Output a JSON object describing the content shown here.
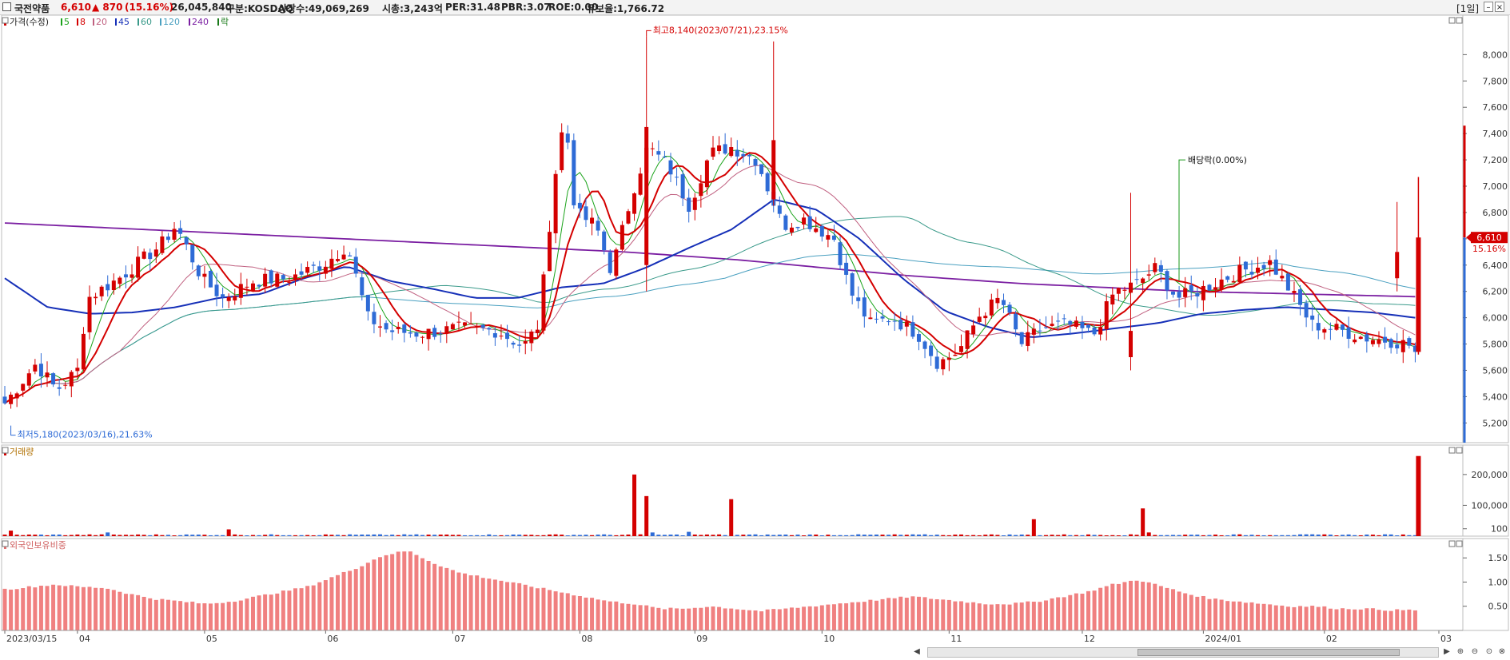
{
  "header": {
    "stock_name": "국전약품",
    "price": "6,610",
    "change": "▲ 870",
    "change_pct": "(15.16%)",
    "volume": "26,045,840",
    "market": "구분:KOSDAQ",
    "shares": "상장수:49,069,269",
    "market_cap": "시총:3,243억",
    "per": "PER:31.48",
    "pbr": "PBR:3.07",
    "roe": "ROE:0.00",
    "float_ratio": "유보율:1,766.72",
    "period_button": "[1일]",
    "colors": {
      "up": "#d40000",
      "down": "#2e6bd6"
    }
  },
  "chart_data": [
    {
      "type": "candlestick",
      "title": "가격(수정)",
      "legend": [
        {
          "label": "5",
          "color": "#1aa31a"
        },
        {
          "label": "8",
          "color": "#d40000"
        },
        {
          "label": "20",
          "color": "#c06080"
        },
        {
          "label": "45",
          "color": "#1630b8"
        },
        {
          "label": "60",
          "color": "#3a9a8a"
        },
        {
          "label": "120",
          "color": "#4aa0c0"
        },
        {
          "label": "240",
          "color": "#7b1fa2"
        },
        {
          "label": "락",
          "color": "#1a7a1a"
        }
      ],
      "y_ticks": [
        "8,000",
        "7,800",
        "7,600",
        "7,400",
        "7,200",
        "7,000",
        "6,800",
        "6,600",
        "6,400",
        "6,200",
        "6,000",
        "5,800",
        "5,600",
        "5,400",
        "5,200"
      ],
      "ylim": [
        5050,
        8300
      ],
      "x_ticks": [
        "2023/03/15",
        "04",
        "05",
        "06",
        "07",
        "08",
        "09",
        "10",
        "11",
        "12",
        "2024/01",
        "02",
        "03"
      ],
      "annotations": {
        "high": "최고8,140(2023/07/21),23.15%",
        "low": "최저5,180(2023/03/16),21.63%",
        "dividend": "배당락(0.00%)",
        "last_price": "6,610",
        "last_pct": "15.16%"
      },
      "series_ma240": [
        6720,
        6700,
        6680,
        6660,
        6640,
        6620,
        6600,
        6580,
        6560,
        6540,
        6520,
        6500,
        6470,
        6440,
        6400,
        6360,
        6320,
        6290,
        6260,
        6240,
        6220,
        6200,
        6190,
        6180,
        6170,
        6160
      ],
      "series_ma45": [
        6300,
        6080,
        6030,
        6040,
        6080,
        6150,
        6180,
        6300,
        6390,
        6280,
        6220,
        6150,
        6150,
        6230,
        6260,
        6380,
        6530,
        6670,
        6900,
        6820,
        6600,
        6300,
        6050,
        5930,
        5850,
        5880,
        5920,
        5960,
        6030,
        6060,
        6080,
        6060,
        6040,
        6000
      ],
      "approx_ohlc_shape": "candles with red (up) and blue (down) bodies from 2023/03 to 2024/02; range 5180-8140"
    },
    {
      "type": "bar",
      "title": "거래량",
      "y_ticks": [
        "200,000",
        "100,000",
        "100"
      ],
      "notable_values": {
        "2023-07-20": 200000,
        "2023-07-21": 130000,
        "2023-08-11": 120000,
        "2023-10-20": 55000,
        "2023-12-05": 90000,
        "2024-02-27": 260000
      }
    },
    {
      "type": "bar",
      "title": "외국인보유비중",
      "y_ticks": [
        "1.50",
        "1.00",
        "0.50"
      ],
      "ylim": [
        0,
        1.9
      ],
      "values_summary": [
        0.85,
        0.9,
        0.95,
        0.9,
        0.88,
        0.75,
        0.65,
        0.6,
        0.55,
        0.6,
        0.7,
        0.8,
        0.9,
        1.1,
        1.3,
        1.55,
        1.65,
        1.4,
        1.2,
        1.1,
        1.0,
        0.9,
        0.8,
        0.7,
        0.6,
        0.55,
        0.45,
        0.45,
        0.5,
        0.45,
        0.4,
        0.45,
        0.5,
        0.55,
        0.6,
        0.65,
        0.7,
        0.65,
        0.6,
        0.55,
        0.55,
        0.6,
        0.7,
        0.8,
        0.95,
        1.05,
        0.9,
        0.75,
        0.65,
        0.6,
        0.55,
        0.5,
        0.5,
        0.45,
        0.45,
        0.42,
        0.42
      ]
    }
  ]
}
